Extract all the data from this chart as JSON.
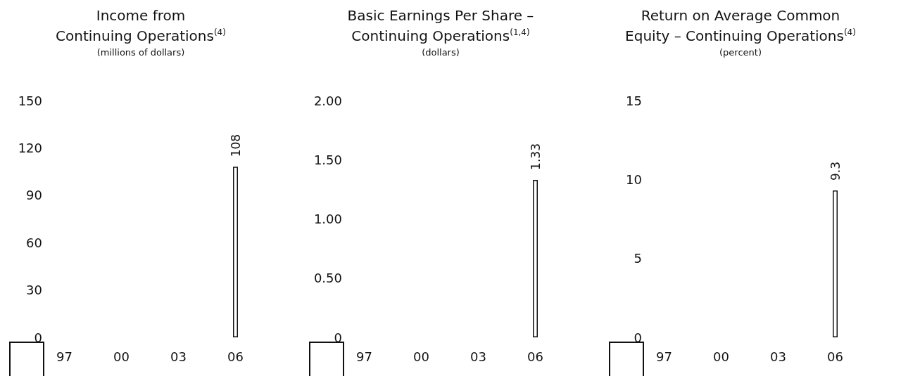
{
  "chart_data": [
    {
      "type": "bar",
      "title": "Income from\nContinuing Operations$^{(4)}$",
      "subtitle": "(millions of dollars)",
      "categories": [
        "97",
        null,
        null,
        "00",
        null,
        null,
        "03",
        null,
        null,
        "06"
      ],
      "values": [
        null,
        null,
        null,
        null,
        null,
        null,
        null,
        null,
        null,
        108
      ],
      "color": "#ffffff",
      "ylim": [
        0,
        150
      ],
      "yticks": [
        0,
        30,
        60,
        90,
        120,
        150
      ],
      "data_labels": true,
      "grid": false
    },
    {
      "type": "bar",
      "title": "Basic Earnings Per Share –\nContinuing Operations$^{(1,4)}$",
      "subtitle": "(dollars)",
      "categories": [
        "97",
        null,
        null,
        "00",
        null,
        null,
        "03",
        null,
        null,
        "06"
      ],
      "values": [
        null,
        null,
        null,
        null,
        null,
        null,
        null,
        null,
        null,
        1.33
      ],
      "color": "#ffffff",
      "ylim": [
        0,
        2
      ],
      "yticks": [
        0,
        {
          "value": 0.5,
          "label": "0.50"
        },
        {
          "value": 1,
          "label": "1.00"
        },
        {
          "value": 1.5,
          "label": "1.50"
        },
        {
          "value": 2,
          "label": "2.00"
        }
      ],
      "data_labels": true,
      "grid": false
    },
    {
      "type": "bar",
      "title": "Return on Average Common\nEquity – Continuing Operations$^{(4)}$",
      "subtitle": "(percent)",
      "categories": [
        "97",
        null,
        null,
        "00",
        null,
        null,
        "03",
        null,
        null,
        "06"
      ],
      "values": [
        null,
        null,
        null,
        null,
        null,
        null,
        null,
        null,
        null,
        9.3
      ],
      "color": "#ffffff",
      "ylim": [
        0,
        15
      ],
      "yticks": [
        0,
        5,
        10,
        15
      ],
      "data_labels": true,
      "grid": false
    }
  ]
}
